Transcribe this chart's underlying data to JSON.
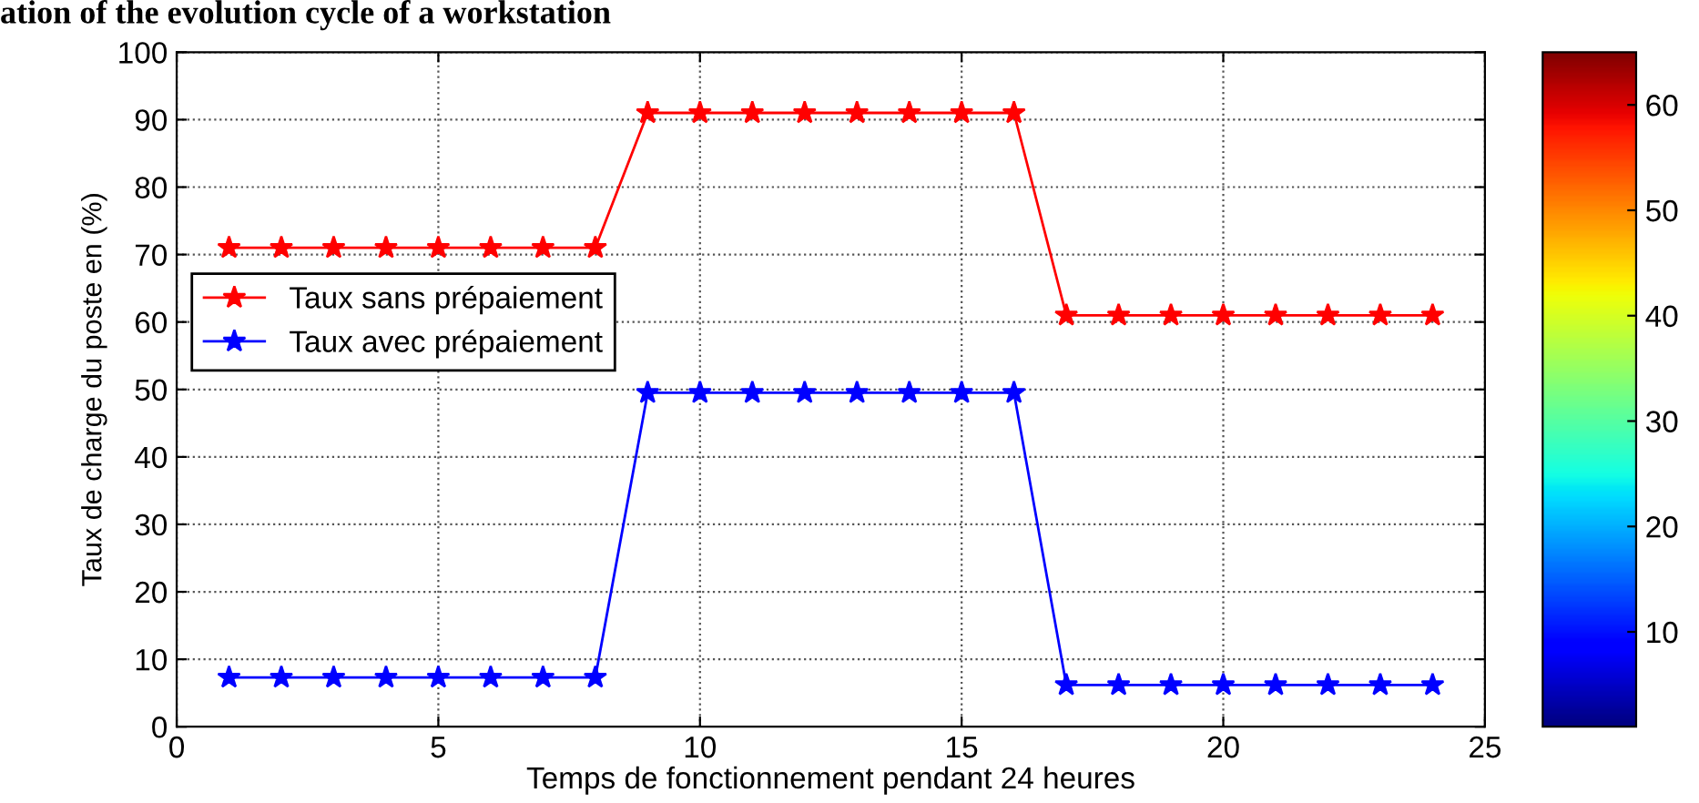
{
  "chart_data": {
    "type": "line",
    "title": "ation of the evolution cycle of a workstation",
    "xlabel": "Temps de fonctionnement pendant 24 heures",
    "ylabel": "Taux de charge du poste en (%)",
    "x": [
      1,
      2,
      3,
      4,
      5,
      6,
      7,
      8,
      9,
      10,
      11,
      12,
      13,
      14,
      15,
      16,
      17,
      18,
      19,
      20,
      21,
      22,
      23,
      24
    ],
    "series": [
      {
        "name": "Taux sans prépaiement",
        "color": "#ff0000",
        "values": [
          71,
          71,
          71,
          71,
          71,
          71,
          71,
          71,
          91,
          91,
          91,
          91,
          91,
          91,
          91,
          91,
          61,
          61,
          61,
          61,
          61,
          61,
          61,
          61
        ]
      },
      {
        "name": "Taux avec prépaiement",
        "color": "#0000ff",
        "values": [
          7.3,
          7.3,
          7.3,
          7.3,
          7.3,
          7.3,
          7.3,
          7.3,
          49.5,
          49.5,
          49.5,
          49.5,
          49.5,
          49.5,
          49.5,
          49.5,
          6.2,
          6.2,
          6.2,
          6.2,
          6.2,
          6.2,
          6.2,
          6.2
        ]
      }
    ],
    "xlim": [
      0,
      25
    ],
    "xticks": [
      0,
      5,
      10,
      15,
      20,
      25
    ],
    "ylim": [
      0,
      100
    ],
    "yticks": [
      0,
      10,
      20,
      30,
      40,
      50,
      60,
      70,
      80,
      90,
      100
    ],
    "clim": [
      1,
      65
    ],
    "cticks": [
      10,
      20,
      30,
      40,
      50,
      60
    ],
    "grid": true,
    "legend": "center left",
    "marker": "star",
    "line_style": "solid"
  }
}
